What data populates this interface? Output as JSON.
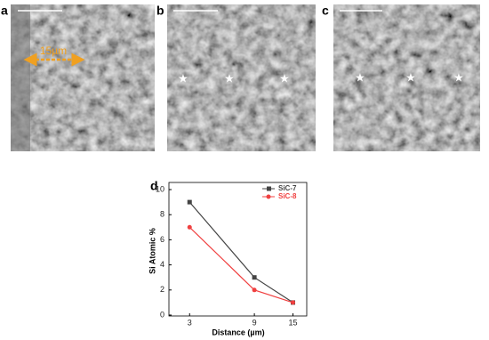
{
  "panels": [
    {
      "label": "a",
      "annotation": "15µm"
    },
    {
      "label": "b"
    },
    {
      "label": "c"
    }
  ],
  "chart_data": {
    "type": "line",
    "panel_label": "d",
    "x_label": "Distance (µm)",
    "y_label": "Si Atomic %",
    "categories": [
      "3",
      "9",
      "15"
    ],
    "series": [
      {
        "name": "SiC-7",
        "color": "#444444",
        "marker": "square",
        "values": [
          9,
          3,
          1
        ]
      },
      {
        "name": "SiC-8",
        "color": "#f04040",
        "marker": "circle",
        "values": [
          7,
          2,
          1
        ]
      }
    ],
    "ylim": [
      0,
      10
    ],
    "yticks": [
      0,
      2,
      4,
      6,
      8,
      10
    ],
    "legend": "upper right"
  }
}
